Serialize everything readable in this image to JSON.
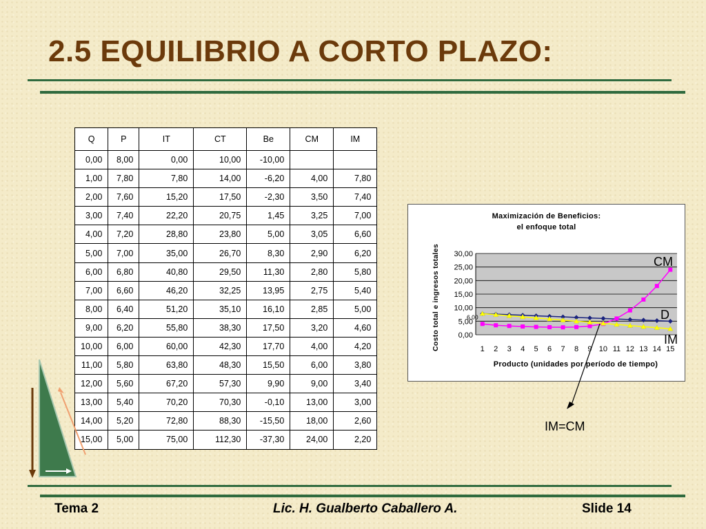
{
  "slide": {
    "title": "2.5 EQUILIBRIO A CORTO PLAZO:",
    "footer_left": "Tema 2",
    "footer_center": "Lic. H. Gualberto Caballero A.",
    "footer_right": "Slide 14",
    "annotation": "IM=CM",
    "colors": {
      "title": "#6b3a0b",
      "rule": "#2f6a3e",
      "triangle": "#3e7a4c"
    }
  },
  "table": {
    "headers": [
      "Q",
      "P",
      "IT",
      "CT",
      "Be",
      "CM",
      "IM"
    ],
    "rows": [
      [
        "0,00",
        "8,00",
        "0,00",
        "10,00",
        "-10,00",
        "",
        ""
      ],
      [
        "1,00",
        "7,80",
        "7,80",
        "14,00",
        "-6,20",
        "4,00",
        "7,80"
      ],
      [
        "2,00",
        "7,60",
        "15,20",
        "17,50",
        "-2,30",
        "3,50",
        "7,40"
      ],
      [
        "3,00",
        "7,40",
        "22,20",
        "20,75",
        "1,45",
        "3,25",
        "7,00"
      ],
      [
        "4,00",
        "7,20",
        "28,80",
        "23,80",
        "5,00",
        "3,05",
        "6,60"
      ],
      [
        "5,00",
        "7,00",
        "35,00",
        "26,70",
        "8,30",
        "2,90",
        "6,20"
      ],
      [
        "6,00",
        "6,80",
        "40,80",
        "29,50",
        "11,30",
        "2,80",
        "5,80"
      ],
      [
        "7,00",
        "6,60",
        "46,20",
        "32,25",
        "13,95",
        "2,75",
        "5,40"
      ],
      [
        "8,00",
        "6,40",
        "51,20",
        "35,10",
        "16,10",
        "2,85",
        "5,00"
      ],
      [
        "9,00",
        "6,20",
        "55,80",
        "38,30",
        "17,50",
        "3,20",
        "4,60"
      ],
      [
        "10,00",
        "6,00",
        "60,00",
        "42,30",
        "17,70",
        "4,00",
        "4,20"
      ],
      [
        "11,00",
        "5,80",
        "63,80",
        "48,30",
        "15,50",
        "6,00",
        "3,80"
      ],
      [
        "12,00",
        "5,60",
        "67,20",
        "57,30",
        "9,90",
        "9,00",
        "3,40"
      ],
      [
        "13,00",
        "5,40",
        "70,20",
        "70,30",
        "-0,10",
        "13,00",
        "3,00"
      ],
      [
        "14,00",
        "5,20",
        "72,80",
        "88,30",
        "-15,50",
        "18,00",
        "2,60"
      ],
      [
        "15,00",
        "5,00",
        "75,00",
        "112,30",
        "-37,30",
        "24,00",
        "2,20"
      ]
    ]
  },
  "chart_data": {
    "type": "line",
    "title": "Maximización de Beneficios:",
    "subtitle": "el enfoque total",
    "xlabel": "Producto (unidades por período de tiempo)",
    "ylabel": "Costo total e ingresos totales",
    "x": [
      1,
      2,
      3,
      4,
      5,
      6,
      7,
      8,
      9,
      10,
      11,
      12,
      13,
      14,
      15
    ],
    "yticks": [
      "0,00",
      "5,00",
      "10,00",
      "15,00",
      "20,00",
      "25,00",
      "30,00"
    ],
    "ylim": [
      0,
      30
    ],
    "grid": true,
    "plot_background": "#c8c8c8",
    "annotation_value": "6,00",
    "series": [
      {
        "name": "D",
        "color": "#1a237e",
        "values": [
          7.8,
          7.6,
          7.4,
          7.2,
          7.0,
          6.8,
          6.6,
          6.4,
          6.2,
          6.0,
          5.8,
          5.6,
          5.4,
          5.2,
          5.0
        ]
      },
      {
        "name": "CM",
        "color": "#ff00ff",
        "values": [
          4.0,
          3.5,
          3.25,
          3.05,
          2.9,
          2.8,
          2.75,
          2.85,
          3.2,
          4.0,
          6.0,
          9.0,
          13.0,
          18.0,
          24.0
        ]
      },
      {
        "name": "IM",
        "color": "#ffff00",
        "values": [
          7.8,
          7.4,
          7.0,
          6.6,
          6.2,
          5.8,
          5.4,
          5.0,
          4.6,
          4.2,
          3.8,
          3.4,
          3.0,
          2.6,
          2.2
        ]
      }
    ]
  }
}
